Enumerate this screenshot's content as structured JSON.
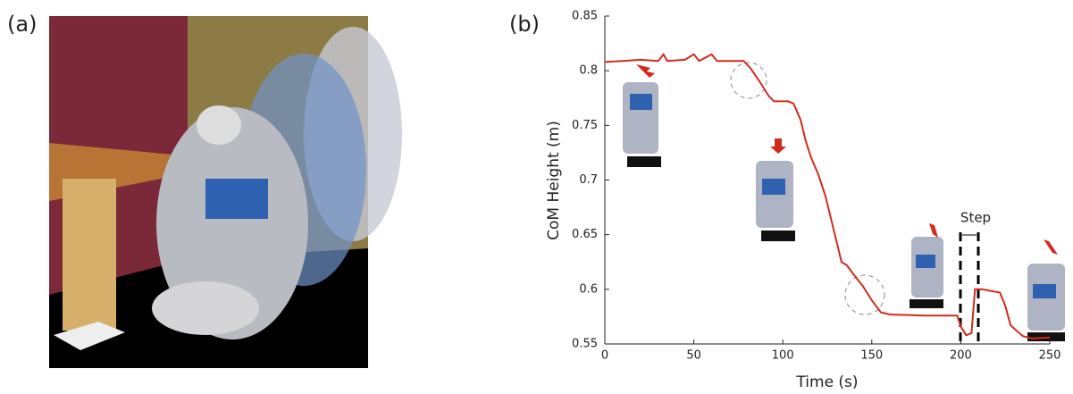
{
  "panel_labels": [
    "(a)",
    "(b)"
  ],
  "chart_data": {
    "type": "line",
    "x_label": "Time (s)",
    "y_label": "CoM Height (m)",
    "annotation": "Step",
    "x": [
      0,
      10,
      20,
      30,
      33,
      35,
      45,
      50,
      53,
      60,
      63,
      70,
      78,
      82,
      87,
      92,
      95,
      103,
      106,
      110,
      113,
      116,
      120,
      124,
      127,
      130,
      133,
      136,
      140,
      145,
      150,
      155,
      160,
      180,
      198,
      200,
      203,
      206,
      208,
      212,
      222,
      225,
      228,
      235,
      240,
      250
    ],
    "series": [
      {
        "color": "#d42a1e",
        "values": [
          0.808,
          0.809,
          0.81,
          0.809,
          0.815,
          0.809,
          0.81,
          0.815,
          0.809,
          0.815,
          0.809,
          0.809,
          0.809,
          0.802,
          0.79,
          0.777,
          0.772,
          0.772,
          0.77,
          0.755,
          0.735,
          0.72,
          0.705,
          0.685,
          0.665,
          0.645,
          0.625,
          0.622,
          0.613,
          0.603,
          0.59,
          0.579,
          0.577,
          0.576,
          0.576,
          0.566,
          0.558,
          0.56,
          0.6,
          0.6,
          0.597,
          0.585,
          0.567,
          0.557,
          0.555,
          0.556
        ]
      }
    ],
    "xlim": [
      0,
      250
    ],
    "xticks": [
      0,
      50,
      100,
      150,
      200,
      250
    ],
    "ylim": [
      0.55,
      0.85
    ],
    "yticks": [
      0.55,
      0.6,
      0.65,
      0.7,
      0.75,
      0.8,
      0.85
    ]
  }
}
